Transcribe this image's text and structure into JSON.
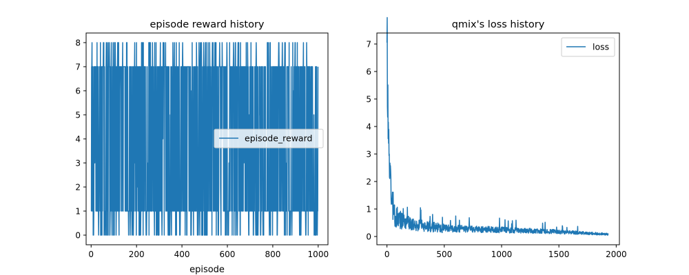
{
  "chart_data": [
    {
      "type": "line",
      "title": "episode reward history",
      "xlabel": "episode",
      "ylabel": "",
      "xlim": [
        -22,
        1043
      ],
      "ylim": [
        -0.4,
        8.4
      ],
      "xticks": [
        0,
        200,
        400,
        600,
        800,
        1000
      ],
      "yticks": [
        0,
        1,
        2,
        3,
        4,
        5,
        6,
        7,
        8
      ],
      "legend": "center-right",
      "grid": false,
      "color": "#1f77b4",
      "series": [
        {
          "name": "episode_reward",
          "x_start": 0,
          "x_end": 999,
          "levels": [
            0,
            1,
            2,
            3,
            4,
            5,
            6,
            7,
            8
          ],
          "dominant_levels": [
            1,
            7
          ]
        }
      ]
    },
    {
      "type": "line",
      "title": "qmix's loss history",
      "xlabel": "",
      "ylabel": "",
      "xlim": [
        -88,
        2028
      ],
      "ylim": [
        -0.3,
        7.4
      ],
      "xticks": [
        0,
        500,
        1000,
        1500,
        2000
      ],
      "yticks": [
        0,
        1,
        2,
        3,
        4,
        5,
        6,
        7
      ],
      "legend": "top-right",
      "grid": false,
      "color": "#1f77b4",
      "series": [
        {
          "name": "loss",
          "x_start": 0,
          "x_end": 1930,
          "initial_value": 7.05,
          "anchors": [
            [
              0,
              7.05
            ],
            [
              10,
              4.0
            ],
            [
              30,
              2.0
            ],
            [
              60,
              0.8
            ],
            [
              150,
              0.5
            ],
            [
              300,
              0.4
            ],
            [
              500,
              0.3
            ],
            [
              1000,
              0.24
            ],
            [
              1500,
              0.17
            ],
            [
              1930,
              0.08
            ]
          ]
        }
      ]
    }
  ]
}
